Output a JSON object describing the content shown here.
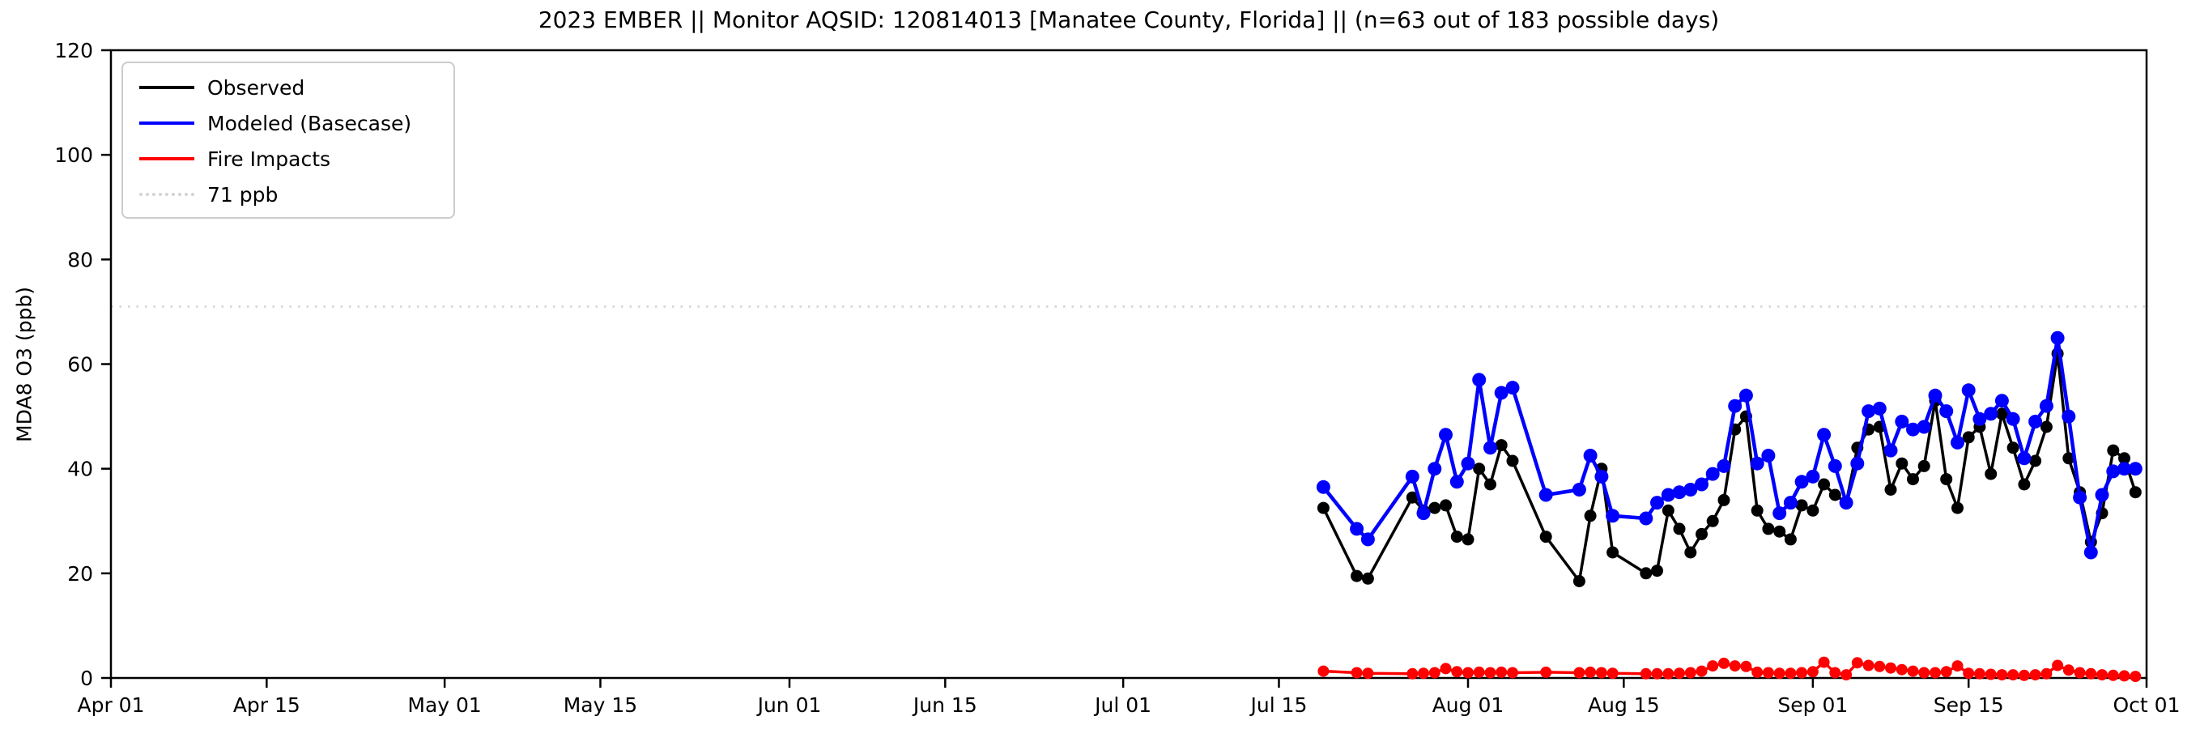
{
  "chart_data": {
    "type": "line",
    "title": "2023 EMBER || Monitor AQSID: 120814013 [Manatee County, Florida] || (n=63 out of 183 possible days)",
    "xlabel": "",
    "ylabel": "MDA8 O3 (ppb)",
    "ylim": [
      0,
      120
    ],
    "yticks": [
      0,
      20,
      40,
      60,
      80,
      100,
      120
    ],
    "x_start": "2023-04-01",
    "x_end": "2023-10-01",
    "xticks": [
      {
        "label": "Apr 01",
        "date": "2023-04-01"
      },
      {
        "label": "Apr 15",
        "date": "2023-04-15"
      },
      {
        "label": "May 01",
        "date": "2023-05-01"
      },
      {
        "label": "May 15",
        "date": "2023-05-15"
      },
      {
        "label": "Jun 01",
        "date": "2023-06-01"
      },
      {
        "label": "Jun 15",
        "date": "2023-06-15"
      },
      {
        "label": "Jul 01",
        "date": "2023-07-01"
      },
      {
        "label": "Jul 15",
        "date": "2023-07-15"
      },
      {
        "label": "Aug 01",
        "date": "2023-08-01"
      },
      {
        "label": "Aug 15",
        "date": "2023-08-15"
      },
      {
        "label": "Sep 01",
        "date": "2023-09-01"
      },
      {
        "label": "Sep 15",
        "date": "2023-09-15"
      },
      {
        "label": "Oct 01",
        "date": "2023-10-01"
      }
    ],
    "threshold": {
      "label": "71 ppb",
      "value": 71,
      "color": "#d3d3d3",
      "style": "dotted"
    },
    "legend": [
      {
        "label": "Observed",
        "color": "#000000",
        "style": "solid"
      },
      {
        "label": "Modeled (Basecase)",
        "color": "#0000ff",
        "style": "solid"
      },
      {
        "label": "Fire Impacts",
        "color": "#ff0000",
        "style": "solid"
      },
      {
        "label": "71 ppb",
        "color": "#d3d3d3",
        "style": "dotted"
      }
    ],
    "legend_position": "upper-left",
    "grid": false,
    "dates": [
      "2023-07-19",
      "2023-07-22",
      "2023-07-23",
      "2023-07-27",
      "2023-07-28",
      "2023-07-29",
      "2023-07-30",
      "2023-07-31",
      "2023-08-01",
      "2023-08-02",
      "2023-08-03",
      "2023-08-04",
      "2023-08-05",
      "2023-08-08",
      "2023-08-11",
      "2023-08-12",
      "2023-08-13",
      "2023-08-14",
      "2023-08-17",
      "2023-08-18",
      "2023-08-19",
      "2023-08-20",
      "2023-08-21",
      "2023-08-22",
      "2023-08-23",
      "2023-08-24",
      "2023-08-25",
      "2023-08-26",
      "2023-08-27",
      "2023-08-28",
      "2023-08-29",
      "2023-08-30",
      "2023-08-31",
      "2023-09-01",
      "2023-09-02",
      "2023-09-03",
      "2023-09-04",
      "2023-09-05",
      "2023-09-06",
      "2023-09-07",
      "2023-09-08",
      "2023-09-09",
      "2023-09-10",
      "2023-09-11",
      "2023-09-12",
      "2023-09-13",
      "2023-09-14",
      "2023-09-15",
      "2023-09-16",
      "2023-09-17",
      "2023-09-18",
      "2023-09-19",
      "2023-09-20",
      "2023-09-21",
      "2023-09-22",
      "2023-09-23",
      "2023-09-24",
      "2023-09-25",
      "2023-09-26",
      "2023-09-27",
      "2023-09-28",
      "2023-09-29",
      "2023-09-30"
    ],
    "series": [
      {
        "name": "Observed",
        "color": "#000000",
        "line_width": 3.5,
        "marker_radius": 7.5,
        "values": [
          32.5,
          19.5,
          19,
          34.5,
          32,
          32.5,
          33,
          27,
          26.5,
          40,
          37,
          44.5,
          41.5,
          27,
          18.5,
          31,
          40,
          24,
          20,
          20.5,
          32,
          28.5,
          24,
          27.5,
          30,
          34,
          47.5,
          50,
          32,
          28.5,
          28,
          26.5,
          33,
          32,
          37,
          35,
          33.5,
          44,
          47.5,
          48,
          36,
          41,
          38,
          40.5,
          53,
          38,
          32.5,
          46,
          48,
          39,
          50.5,
          44,
          37,
          41.5,
          48,
          62,
          42,
          35.5,
          26,
          31.5,
          43.5,
          42,
          35.5
        ]
      },
      {
        "name": "Modeled (Basecase)",
        "color": "#0000ff",
        "line_width": 4.5,
        "marker_radius": 8.5,
        "values": [
          36.5,
          28.5,
          26.5,
          38.5,
          31.5,
          40,
          46.5,
          37.5,
          41,
          57,
          44,
          54.5,
          55.5,
          35,
          36,
          42.5,
          38.5,
          31,
          30.5,
          33.5,
          35,
          35.5,
          36,
          37,
          39,
          40.5,
          52,
          54,
          41,
          42.5,
          31.5,
          33.5,
          37.5,
          38.5,
          46.5,
          40.5,
          33.5,
          41,
          51,
          51.5,
          43.5,
          49,
          47.5,
          48,
          54,
          51,
          45,
          55,
          49.5,
          50.5,
          53,
          49.5,
          42,
          49,
          52,
          65,
          50,
          34.5,
          24,
          35,
          39.5,
          40,
          40
        ]
      },
      {
        "name": "Fire Impacts",
        "color": "#ff0000",
        "line_width": 3.5,
        "marker_radius": 7,
        "values": [
          1.3,
          1.0,
          0.9,
          0.8,
          0.9,
          1.0,
          1.8,
          1.2,
          1.0,
          1.1,
          1.0,
          1.1,
          1.0,
          1.1,
          1.0,
          1.1,
          1.0,
          0.9,
          0.8,
          0.8,
          0.8,
          0.9,
          1.0,
          1.3,
          2.3,
          2.8,
          2.3,
          2.2,
          1.1,
          1.0,
          0.9,
          0.9,
          1.0,
          1.2,
          3.0,
          1.0,
          0.6,
          2.9,
          2.4,
          2.2,
          1.9,
          1.6,
          1.3,
          1.0,
          1.0,
          1.2,
          2.3,
          0.9,
          0.8,
          0.7,
          0.6,
          0.6,
          0.5,
          0.6,
          0.8,
          2.4,
          1.5,
          1.0,
          0.8,
          0.6,
          0.5,
          0.4,
          0.3
        ]
      }
    ]
  }
}
